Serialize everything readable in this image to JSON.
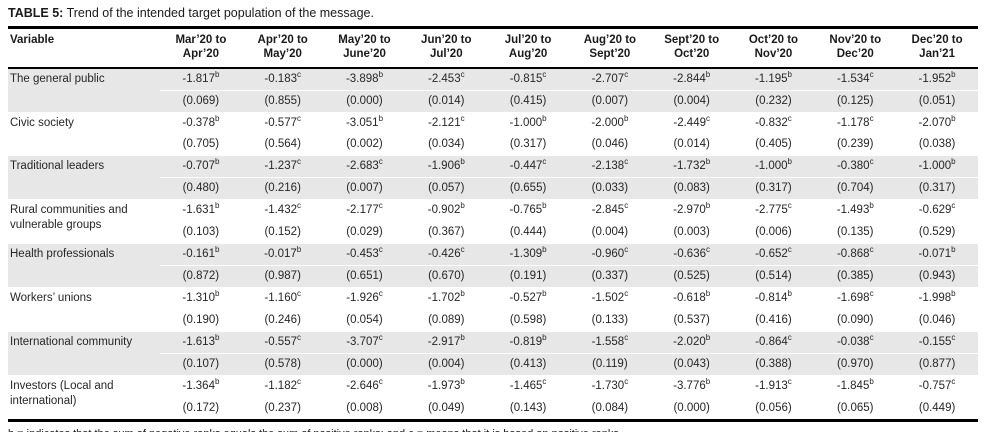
{
  "title": {
    "label": "TABLE 5:",
    "text": " Trend of the intended target population of the message."
  },
  "footnote": "b = indicates that the sum of negative ranks equals the sum of positive ranks; and c = means that it is based on positive ranks.",
  "colors": {
    "stripe": "#e7e7e7",
    "rule": "#000000",
    "text": "#262626"
  },
  "table": {
    "variable_header": "Variable",
    "period_headers": [
      "Mar’20 to\nApr’20",
      "Apr’20 to\nMay’20",
      "May’20 to\nJune’20",
      "Jun’20 to\nJul’20",
      "Jul’20 to\nAug’20",
      "Aug’20 to\nSept’20",
      "Sept’20 to\nOct’20",
      "Oct’20 to\nNov’20",
      "Nov’20 to\nDec’20",
      "Dec’20 to\nJan’21"
    ],
    "rows": [
      {
        "variable": "The general public",
        "values": [
          {
            "v": "-1.817",
            "sup": "b"
          },
          {
            "v": "-0.183",
            "sup": "c"
          },
          {
            "v": "-3.898",
            "sup": "b"
          },
          {
            "v": "-2.453",
            "sup": "c"
          },
          {
            "v": "-0.815",
            "sup": "c"
          },
          {
            "v": "-2.707",
            "sup": "c"
          },
          {
            "v": "-2.844",
            "sup": "b"
          },
          {
            "v": "-1.195",
            "sup": "b"
          },
          {
            "v": "-1.534",
            "sup": "c"
          },
          {
            "v": "-1.952",
            "sup": "b"
          }
        ],
        "pvalues": [
          "(0.069)",
          "(0.855)",
          "(0.000)",
          "(0.014)",
          "(0.415)",
          "(0.007)",
          "(0.004)",
          "(0.232)",
          "(0.125)",
          "(0.051)"
        ]
      },
      {
        "variable": "Civic society",
        "values": [
          {
            "v": "-0.378",
            "sup": "b"
          },
          {
            "v": "-0.577",
            "sup": "c"
          },
          {
            "v": "-3.051",
            "sup": "b"
          },
          {
            "v": "-2.121",
            "sup": "c"
          },
          {
            "v": "-1.000",
            "sup": "b"
          },
          {
            "v": "-2.000",
            "sup": "b"
          },
          {
            "v": "-2.449",
            "sup": "c"
          },
          {
            "v": "-0.832",
            "sup": "c"
          },
          {
            "v": "-1.178",
            "sup": "c"
          },
          {
            "v": "-2.070",
            "sup": "b"
          }
        ],
        "pvalues": [
          "(0.705)",
          "(0.564)",
          "(0.002)",
          "(0.034)",
          "(0.317)",
          "(0.046)",
          "(0.014)",
          "(0.405)",
          "(0.239)",
          "(0.038)"
        ]
      },
      {
        "variable": "Traditional leaders",
        "values": [
          {
            "v": "-0.707",
            "sup": "b"
          },
          {
            "v": "-1.237",
            "sup": "c"
          },
          {
            "v": "-2.683",
            "sup": "c"
          },
          {
            "v": "-1.906",
            "sup": "b"
          },
          {
            "v": "-0.447",
            "sup": "c"
          },
          {
            "v": "-2.138",
            "sup": "c"
          },
          {
            "v": "-1.732",
            "sup": "b"
          },
          {
            "v": "-1.000",
            "sup": "b"
          },
          {
            "v": "-0.380",
            "sup": "c"
          },
          {
            "v": "-1.000",
            "sup": "b"
          }
        ],
        "pvalues": [
          "(0.480)",
          "(0.216)",
          "(0.007)",
          "(0.057)",
          "(0.655)",
          "(0.033)",
          "(0.083)",
          "(0.317)",
          "(0.704)",
          "(0.317)"
        ]
      },
      {
        "variable": "Rural communities and vulnerable groups",
        "values": [
          {
            "v": "-1.631",
            "sup": "b"
          },
          {
            "v": "-1.432",
            "sup": "c"
          },
          {
            "v": "-2.177",
            "sup": "c"
          },
          {
            "v": "-0.902",
            "sup": "b"
          },
          {
            "v": "-0.765",
            "sup": "b"
          },
          {
            "v": "-2.845",
            "sup": "c"
          },
          {
            "v": "-2.970",
            "sup": "b"
          },
          {
            "v": "-2.775",
            "sup": "c"
          },
          {
            "v": "-1.493",
            "sup": "b"
          },
          {
            "v": "-0.629",
            "sup": "c"
          }
        ],
        "pvalues": [
          "(0.103)",
          "(0.152)",
          "(0.029)",
          "(0.367)",
          "(0.444)",
          "(0.004)",
          "(0.003)",
          "(0.006)",
          "(0.135)",
          "(0.529)"
        ]
      },
      {
        "variable": "Health professionals",
        "values": [
          {
            "v": "-0.161",
            "sup": "b"
          },
          {
            "v": "-0.017",
            "sup": "b"
          },
          {
            "v": "-0.453",
            "sup": "c"
          },
          {
            "v": "-0.426",
            "sup": "c"
          },
          {
            "v": "-1.309",
            "sup": "b"
          },
          {
            "v": "-0.960",
            "sup": "c"
          },
          {
            "v": "-0.636",
            "sup": "c"
          },
          {
            "v": "-0.652",
            "sup": "c"
          },
          {
            "v": "-0.868",
            "sup": "c"
          },
          {
            "v": "-0.071",
            "sup": "b"
          }
        ],
        "pvalues": [
          "(0.872)",
          "(0.987)",
          "(0.651)",
          "(0.670)",
          "(0.191)",
          "(0.337)",
          "(0.525)",
          "(0.514)",
          "(0.385)",
          "(0.943)"
        ]
      },
      {
        "variable": "Workers’ unions",
        "values": [
          {
            "v": "-1.310",
            "sup": "b"
          },
          {
            "v": "-1.160",
            "sup": "c"
          },
          {
            "v": "-1.926",
            "sup": "c"
          },
          {
            "v": "-1.702",
            "sup": "b"
          },
          {
            "v": "-0.527",
            "sup": "b"
          },
          {
            "v": "-1.502",
            "sup": "c"
          },
          {
            "v": "-0.618",
            "sup": "b"
          },
          {
            "v": "-0.814",
            "sup": "b"
          },
          {
            "v": "-1.698",
            "sup": "c"
          },
          {
            "v": "-1.998",
            "sup": "b"
          }
        ],
        "pvalues": [
          "(0.190)",
          "(0.246)",
          "(0.054)",
          "(0.089)",
          "(0.598)",
          "(0.133)",
          "(0.537)",
          "(0.416)",
          "(0.090)",
          "(0.046)"
        ]
      },
      {
        "variable": "International community",
        "values": [
          {
            "v": "-1.613",
            "sup": "b"
          },
          {
            "v": "-0.557",
            "sup": "c"
          },
          {
            "v": "-3.707",
            "sup": "c"
          },
          {
            "v": "-2.917",
            "sup": "b"
          },
          {
            "v": "-0.819",
            "sup": "b"
          },
          {
            "v": "-1.558",
            "sup": "c"
          },
          {
            "v": "-2.020",
            "sup": "b"
          },
          {
            "v": "-0.864",
            "sup": "c"
          },
          {
            "v": "-0.038",
            "sup": "c"
          },
          {
            "v": "-0.155",
            "sup": "c"
          }
        ],
        "pvalues": [
          "(0.107)",
          "(0.578)",
          "(0.000)",
          "(0.004)",
          "(0.413)",
          "(0.119)",
          "(0.043)",
          "(0.388)",
          "(0.970)",
          "(0.877)"
        ]
      },
      {
        "variable": "Investors (Local and international)",
        "values": [
          {
            "v": "-1.364",
            "sup": "b"
          },
          {
            "v": "-1.182",
            "sup": "c"
          },
          {
            "v": "-2.646",
            "sup": "c"
          },
          {
            "v": "-1.973",
            "sup": "b"
          },
          {
            "v": "-1.465",
            "sup": "c"
          },
          {
            "v": "-1.730",
            "sup": "c"
          },
          {
            "v": "-3.776",
            "sup": "b"
          },
          {
            "v": "-1.913",
            "sup": "c"
          },
          {
            "v": "-1.845",
            "sup": "b"
          },
          {
            "v": "-0.757",
            "sup": "c"
          }
        ],
        "pvalues": [
          "(0.172)",
          "(0.237)",
          "(0.008)",
          "(0.049)",
          "(0.143)",
          "(0.084)",
          "(0.000)",
          "(0.056)",
          "(0.065)",
          "(0.449)"
        ]
      }
    ]
  }
}
